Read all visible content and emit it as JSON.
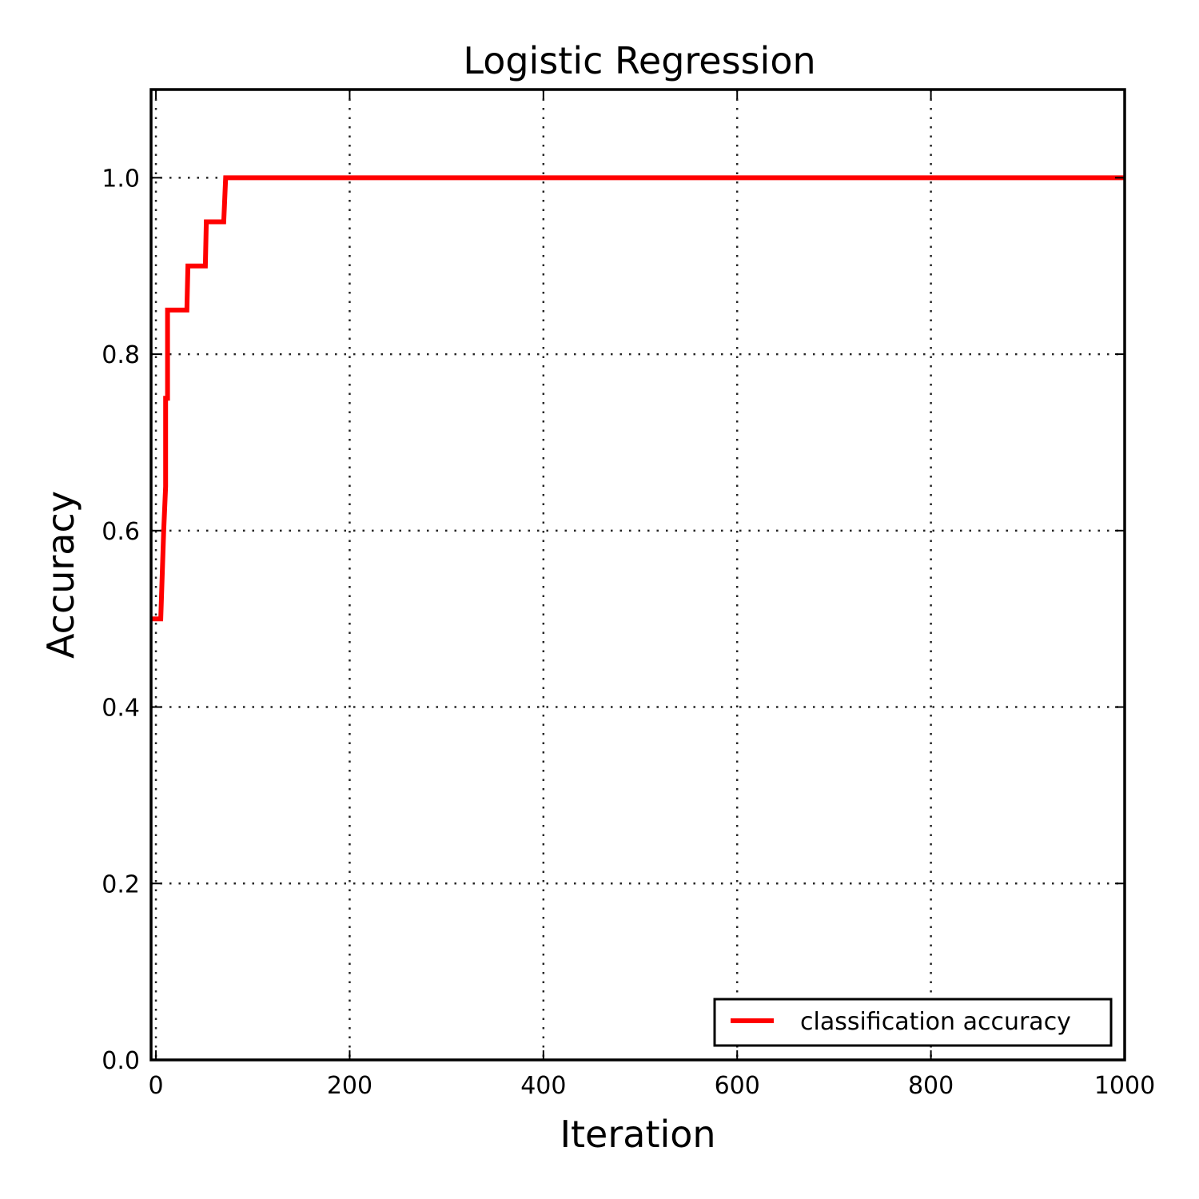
{
  "chart_data": {
    "type": "line",
    "title": "Logistic Regression",
    "xlabel": "Iteration",
    "ylabel": "Accuracy",
    "xlim": [
      -5,
      1000
    ],
    "ylim": [
      0.0,
      1.1
    ],
    "xticks": [
      0,
      200,
      400,
      600,
      800,
      1000
    ],
    "xtick_labels": [
      "0",
      "200",
      "400",
      "600",
      "800",
      "1000"
    ],
    "yticks": [
      0.0,
      0.2,
      0.4,
      0.6,
      0.8,
      1.0
    ],
    "ytick_labels": [
      "0.0",
      "0.2",
      "0.4",
      "0.6",
      "0.8",
      "1.0"
    ],
    "grid": true,
    "legend_position": "lower-right",
    "series": [
      {
        "name": "classification accuracy",
        "color": "#ff0000",
        "x": [
          -5,
          5,
          8,
          10,
          10,
          12,
          12,
          32,
          33,
          51,
          52,
          70,
          72,
          1000
        ],
        "y": [
          0.5,
          0.5,
          0.6,
          0.65,
          0.75,
          0.75,
          0.85,
          0.85,
          0.9,
          0.9,
          0.95,
          0.95,
          1.0,
          1.0
        ]
      }
    ]
  }
}
